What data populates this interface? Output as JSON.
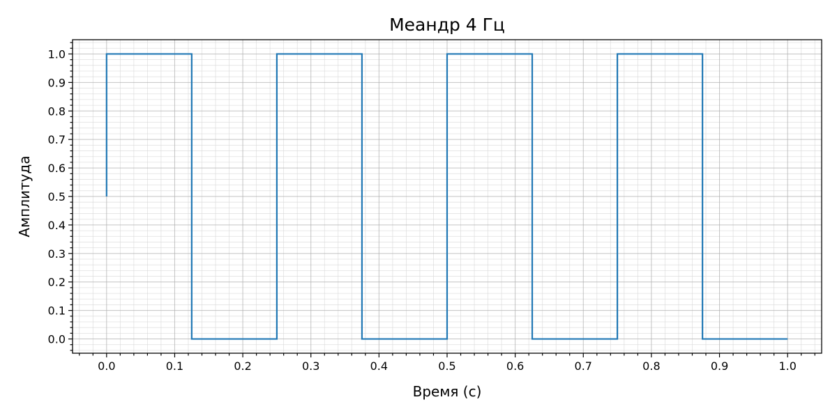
{
  "chart_data": {
    "type": "line",
    "title": "Меандр 4 Гц",
    "xlabel": "Время (с)",
    "ylabel": "Амплитуда",
    "xlim": [
      -0.05,
      1.05
    ],
    "ylim": [
      -0.05,
      1.05
    ],
    "x_ticks": [
      "0.0",
      "0.1",
      "0.2",
      "0.3",
      "0.4",
      "0.5",
      "0.6",
      "0.7",
      "0.8",
      "0.9",
      "1.0"
    ],
    "y_ticks": [
      "0.0",
      "0.1",
      "0.2",
      "0.3",
      "0.4",
      "0.5",
      "0.6",
      "0.7",
      "0.8",
      "0.9",
      "1.0"
    ],
    "grid": true,
    "minor_grid": true,
    "colors": {
      "series": "#1f77b4"
    },
    "series": [
      {
        "x": [
          0.0,
          0.0,
          0.125,
          0.125,
          0.25,
          0.25,
          0.375,
          0.375,
          0.5,
          0.5,
          0.625,
          0.625,
          0.75,
          0.75,
          0.875,
          0.875,
          1.0
        ],
        "y": [
          0.5,
          1.0,
          1.0,
          0.0,
          0.0,
          1.0,
          1.0,
          0.0,
          0.0,
          1.0,
          1.0,
          0.0,
          0.0,
          1.0,
          1.0,
          0.0,
          0.0
        ]
      }
    ]
  }
}
